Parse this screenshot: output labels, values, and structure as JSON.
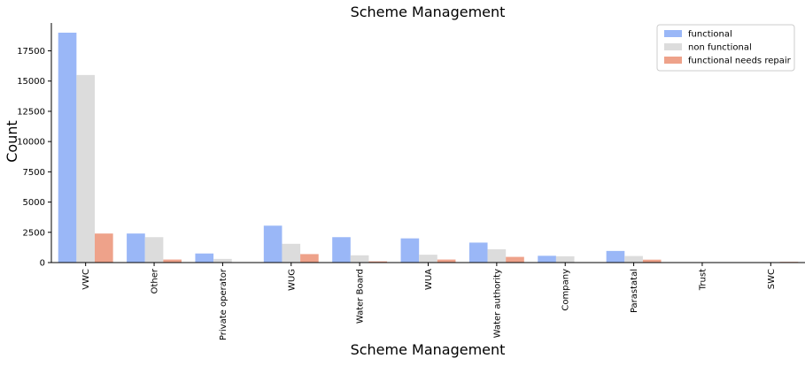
{
  "chart_data": {
    "type": "bar",
    "title": "Scheme Management",
    "xlabel": "Scheme Management",
    "ylabel": "Count",
    "ylim": [
      0,
      19800
    ],
    "yticks": [
      0,
      2500,
      5000,
      7500,
      10000,
      12500,
      15000,
      17500
    ],
    "grid": false,
    "legend_position": "top-right",
    "categories": [
      "VWC",
      "Other",
      "Private operator",
      "WUG",
      "Water Board",
      "WUA",
      "Water authority",
      "Company",
      "Parastatal",
      "Trust",
      "SWC"
    ],
    "series": [
      {
        "name": "functional",
        "color": "#9ab7f7",
        "values": [
          19000,
          2400,
          750,
          3050,
          2100,
          2000,
          1650,
          560,
          960,
          30,
          10
        ]
      },
      {
        "name": "non functional",
        "color": "#dcdcdc",
        "values": [
          15500,
          2100,
          300,
          1550,
          600,
          650,
          1100,
          520,
          540,
          12,
          40
        ]
      },
      {
        "name": "functional needs repair",
        "color": "#eea28a",
        "values": [
          2400,
          250,
          30,
          700,
          100,
          250,
          470,
          20,
          240,
          5,
          60
        ]
      }
    ]
  }
}
